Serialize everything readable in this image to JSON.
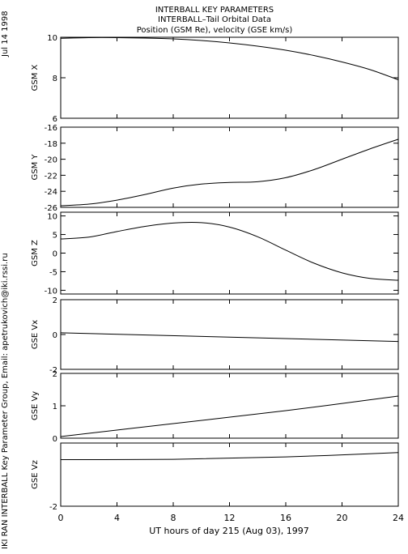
{
  "header": {
    "title_line1": "INTERBALL KEY PARAMETERS",
    "title_line2": "INTERBALL–Tail Orbital Data",
    "title_line3": "Position (GSM Re), velocity (GSE km/s)"
  },
  "date_label": "Jul 14 1998",
  "credit": "IKI RAN INTERBALL Key Parameter Group, Email: apetrukovich@iki.rssi.ru",
  "chart_data": [
    {
      "type": "line",
      "ylabel": "GSM X",
      "ylim": [
        6,
        10
      ],
      "yticks": [
        "10",
        "8",
        "6"
      ],
      "yticks_values": [
        10,
        8,
        6
      ],
      "x": [
        0,
        2,
        4,
        6,
        8,
        10,
        12,
        14,
        16,
        18,
        20,
        22,
        24
      ],
      "values": [
        9.95,
        9.98,
        9.98,
        9.96,
        9.92,
        9.84,
        9.72,
        9.56,
        9.36,
        9.1,
        8.78,
        8.4,
        7.9
      ]
    },
    {
      "type": "line",
      "ylabel": "GSM Y",
      "ylim": [
        -26,
        -16
      ],
      "yticks": [
        "-16",
        "-18",
        "-20",
        "-22",
        "-24",
        "-26"
      ],
      "yticks_values": [
        -16,
        -18,
        -20,
        -22,
        -24,
        -26
      ],
      "x": [
        0,
        2,
        4,
        6,
        8,
        10,
        12,
        14,
        16,
        18,
        20,
        22,
        24
      ],
      "values": [
        -25.8,
        -25.6,
        -25.1,
        -24.4,
        -23.6,
        -23.1,
        -22.9,
        -22.8,
        -22.3,
        -21.3,
        -20.0,
        -18.7,
        -17.5
      ]
    },
    {
      "type": "line",
      "ylabel": "GSM Z",
      "ylim": [
        -11,
        11
      ],
      "yticks": [
        "10",
        "5",
        "0",
        "-5",
        "-10"
      ],
      "yticks_values": [
        10,
        5,
        0,
        -5,
        -10
      ],
      "x": [
        0,
        2,
        4,
        6,
        8,
        10,
        12,
        14,
        16,
        18,
        20,
        22,
        24
      ],
      "values": [
        3.8,
        4.3,
        5.8,
        7.2,
        8.1,
        8.2,
        7.0,
        4.4,
        0.8,
        -2.7,
        -5.3,
        -6.8,
        -7.3
      ]
    },
    {
      "type": "line",
      "ylabel": "GSE Vx",
      "ylim": [
        -2,
        2
      ],
      "yticks": [
        "2",
        "0",
        "-2"
      ],
      "yticks_values": [
        2,
        0,
        -2
      ],
      "x": [
        0,
        24
      ],
      "values": [
        0.1,
        -0.4
      ]
    },
    {
      "type": "line",
      "ylabel": "GSE Vy",
      "ylim": [
        0,
        2
      ],
      "yticks": [
        "2",
        "1",
        "0"
      ],
      "yticks_values": [
        2,
        1,
        0
      ],
      "x": [
        0,
        8,
        16,
        24
      ],
      "values": [
        0.05,
        0.45,
        0.85,
        1.3
      ]
    },
    {
      "type": "line",
      "ylabel": "GSE Vz",
      "ylim": [
        -2,
        2
      ],
      "yticks": [
        "-2"
      ],
      "yticks_values": [
        -2
      ],
      "x": [
        0,
        8,
        16,
        24
      ],
      "values": [
        0.95,
        0.97,
        1.12,
        1.4
      ]
    }
  ],
  "x_axis": {
    "label": "UT hours of day 215 (Aug 03), 1997",
    "ticks": [
      "0",
      "4",
      "8",
      "12",
      "16",
      "20",
      "24"
    ],
    "tick_values": [
      0,
      4,
      8,
      12,
      16,
      20,
      24
    ],
    "xlim": [
      0,
      24
    ]
  }
}
